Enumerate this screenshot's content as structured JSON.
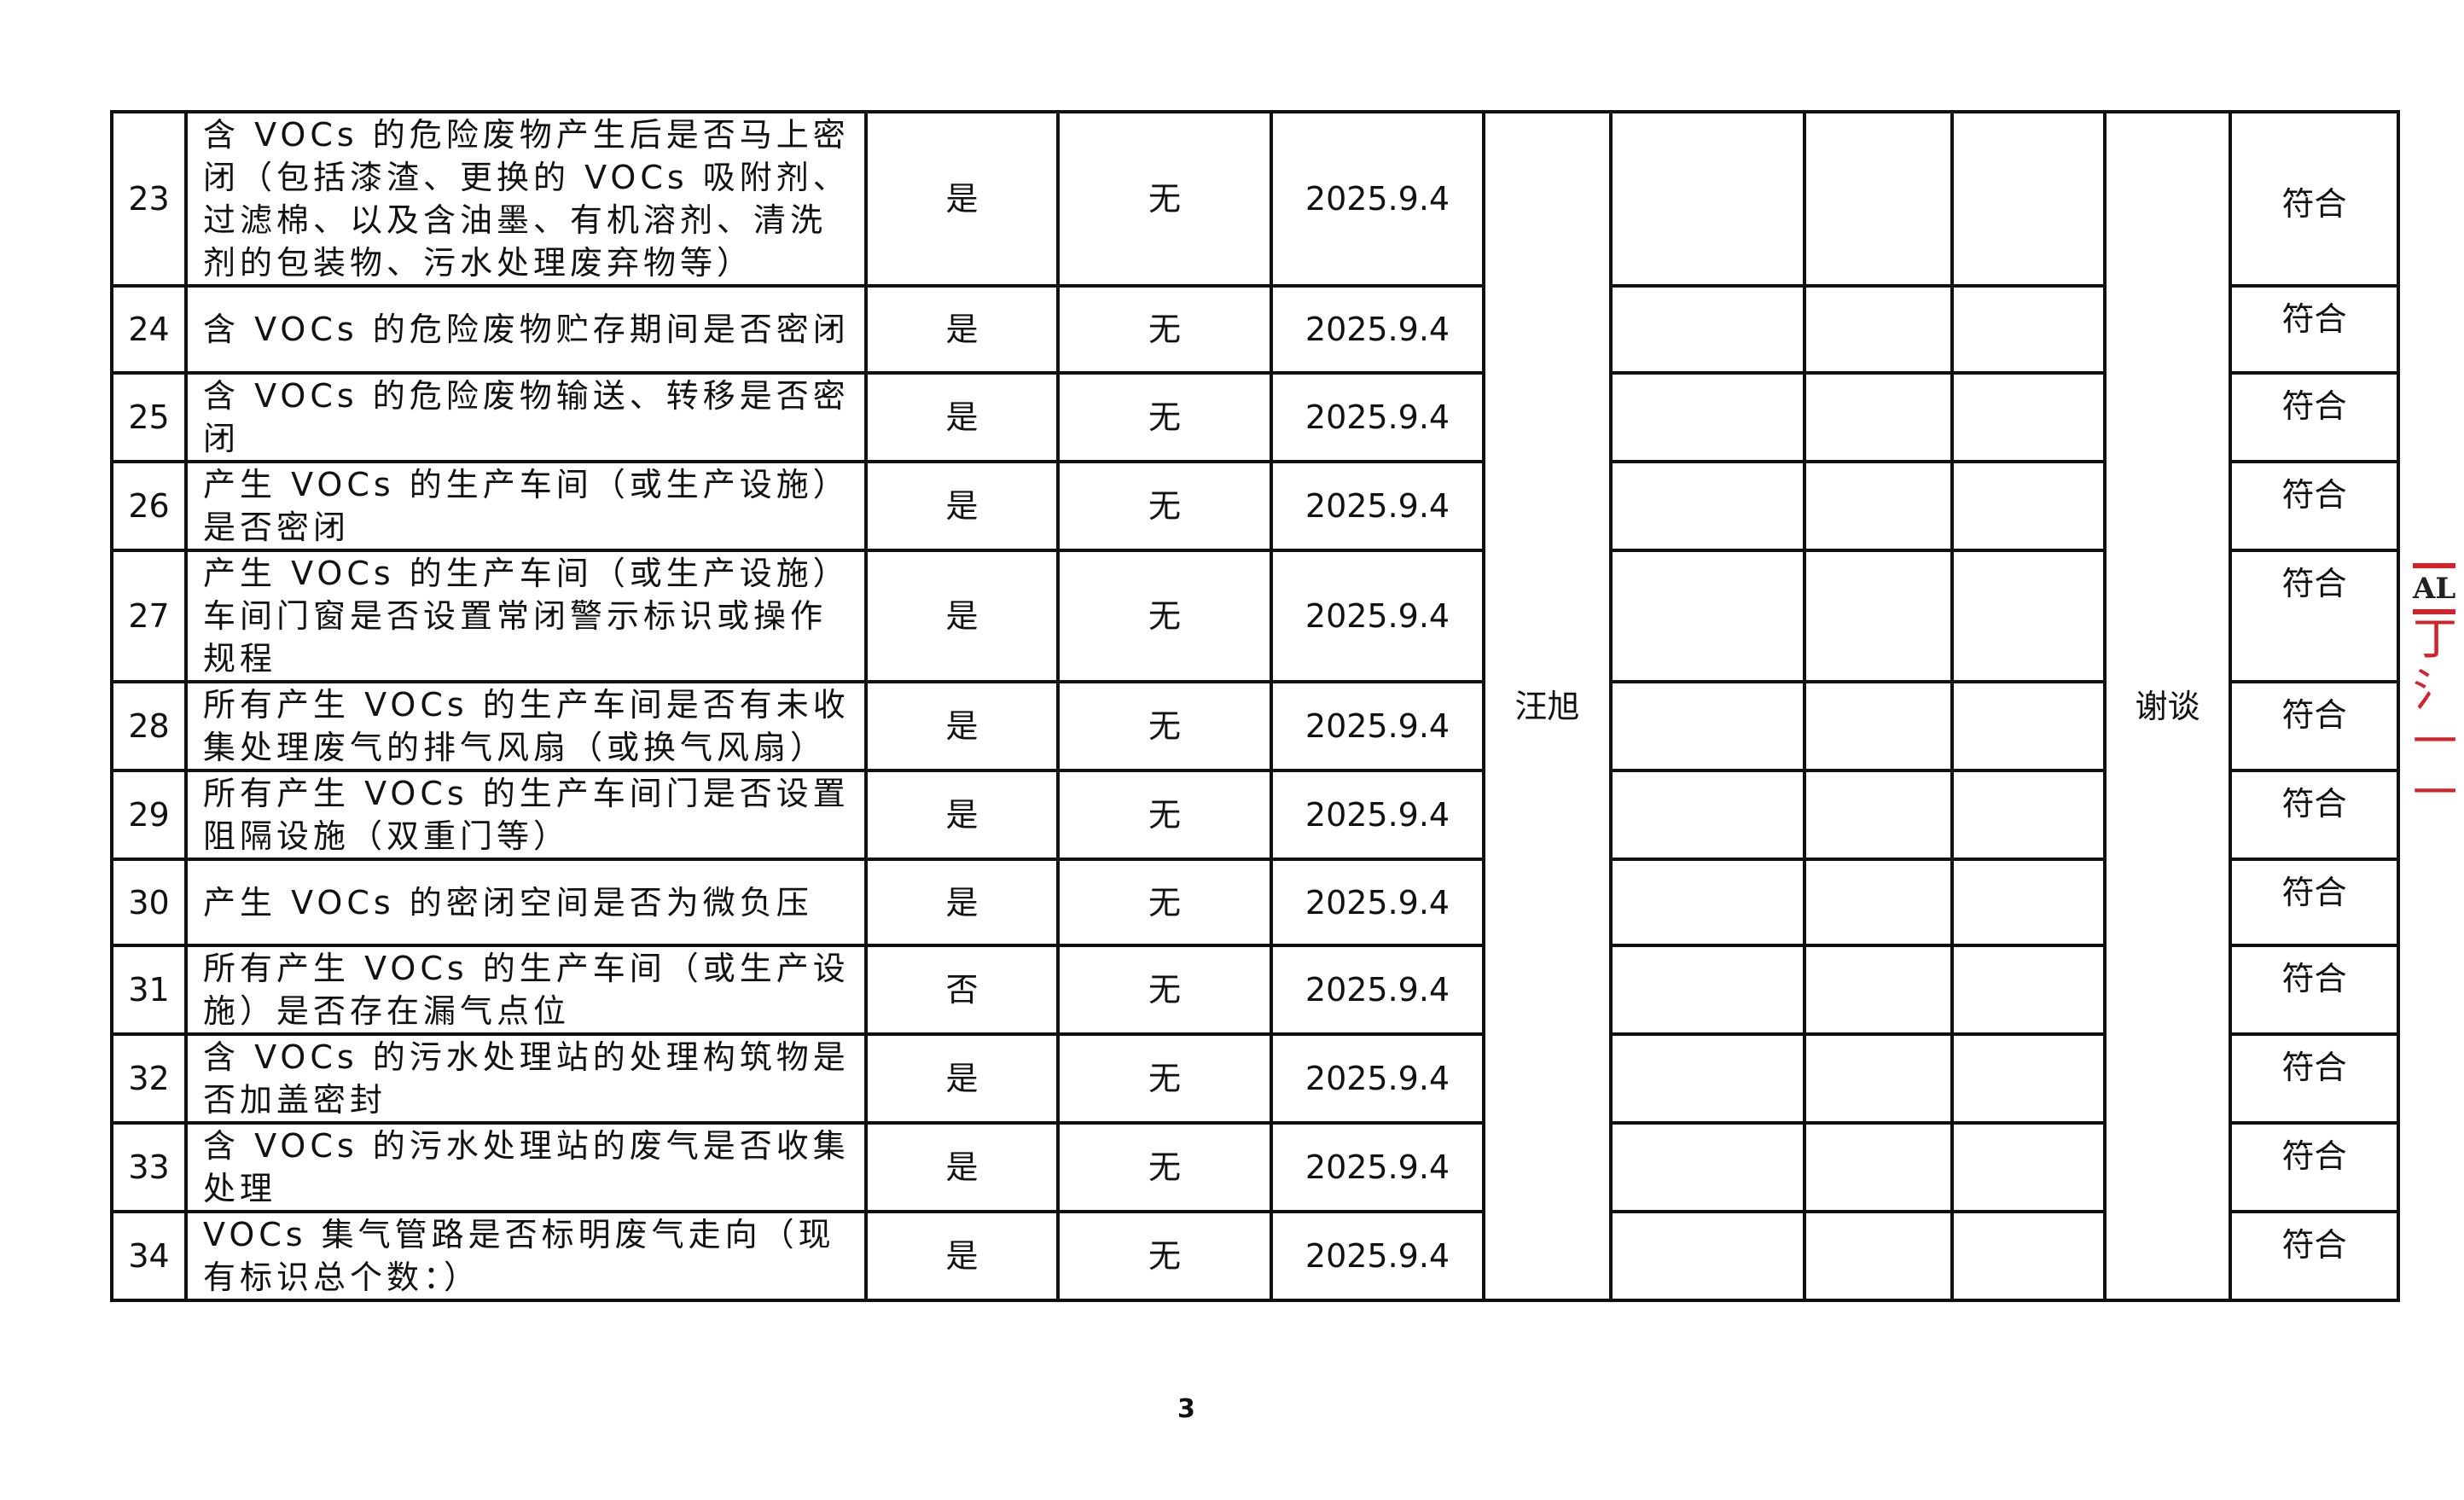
{
  "rows": [
    {
      "no": "23",
      "item": "含 VOCs 的危险废物产生后是否马上密闭（包括漆渣、更换的 VOCs 吸附剂、过滤棉、以及含油墨、有机溶剂、清洗剂的包装物、污水处理废弃物等）",
      "answer": "是",
      "issue": "无",
      "date": "2025.9.4",
      "result": "符合"
    },
    {
      "no": "24",
      "item": "含 VOCs 的危险废物贮存期间是否密闭",
      "answer": "是",
      "issue": "无",
      "date": "2025.9.4",
      "result": "符合"
    },
    {
      "no": "25",
      "item": "含 VOCs 的危险废物输送、转移是否密闭",
      "answer": "是",
      "issue": "无",
      "date": "2025.9.4",
      "result": "符合"
    },
    {
      "no": "26",
      "item": "产生 VOCs 的生产车间（或生产设施）是否密闭",
      "answer": "是",
      "issue": "无",
      "date": "2025.9.4",
      "result": "符合"
    },
    {
      "no": "27",
      "item": "产生 VOCs 的生产车间（或生产设施）车间门窗是否设置常闭警示标识或操作规程",
      "answer": "是",
      "issue": "无",
      "date": "2025.9.4",
      "result": "符合"
    },
    {
      "no": "28",
      "item": "所有产生 VOCs 的生产车间是否有未收集处理废气的排气风扇（或换气风扇）",
      "answer": "是",
      "issue": "无",
      "date": "2025.9.4",
      "result": "符合"
    },
    {
      "no": "29",
      "item": "所有产生 VOCs 的生产车间门是否设置阻隔设施（双重门等）",
      "answer": "是",
      "issue": "无",
      "date": "2025.9.4",
      "result": "符合"
    },
    {
      "no": "30",
      "item": "产生 VOCs 的密闭空间是否为微负压",
      "answer": "是",
      "issue": "无",
      "date": "2025.9.4",
      "result": "符合"
    },
    {
      "no": "31",
      "item": "所有产生 VOCs 的生产车间（或生产设施）是否存在漏气点位",
      "answer": "否",
      "issue": "无",
      "date": "2025.9.4",
      "result": "符合"
    },
    {
      "no": "32",
      "item": "含 VOCs 的污水处理站的处理构筑物是否加盖密封",
      "answer": "是",
      "issue": "无",
      "date": "2025.9.4",
      "result": "符合"
    },
    {
      "no": "33",
      "item": "含 VOCs 的污水处理站的废气是否收集处理",
      "answer": "是",
      "issue": "无",
      "date": "2025.9.4",
      "result": "符合"
    },
    {
      "no": "34",
      "item": "VOCs 集气管路是否标明废气走向（现有标识总个数：）",
      "answer": "是",
      "issue": "无",
      "date": "2025.9.4",
      "result": "符合"
    }
  ],
  "inspector": "汪旭",
  "method": "谢谈",
  "page_number": "3",
  "stamp": {
    "text": "AL",
    "color": "#d2222a"
  }
}
